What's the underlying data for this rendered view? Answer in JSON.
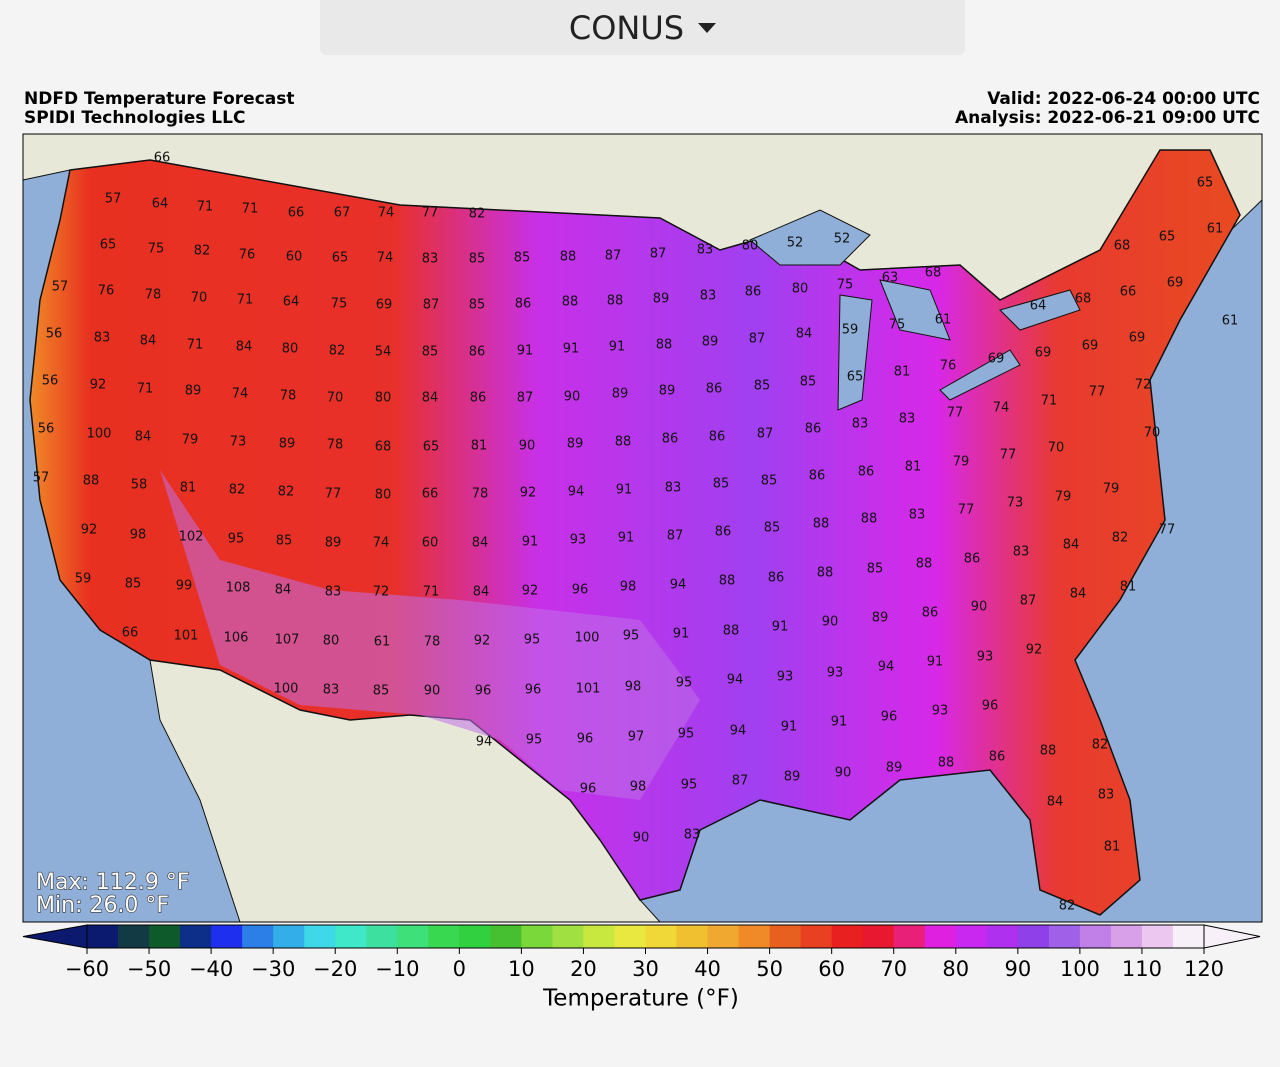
{
  "header": {
    "region": "CONUS",
    "title": "NDFD Temperature Forecast",
    "subtitle": "SPIDI Technologies LLC",
    "valid": "Valid: 2022-06-24 00:00 UTC",
    "analysis": "Analysis: 2022-06-21 09:00 UTC",
    "max": "Max: 112.9 °F",
    "min": "Min: 26.0 °F"
  },
  "map": {
    "label_rows": [
      [
        66
      ],
      [
        57,
        64,
        71,
        71,
        66,
        67,
        74,
        77,
        82
      ],
      [
        65,
        75,
        82,
        76,
        60,
        65,
        74,
        83,
        85,
        85,
        88,
        87,
        87,
        83,
        80,
        52,
        52,
        68,
        65,
        65,
        61
      ],
      [
        57,
        76,
        78,
        70,
        71,
        64,
        75,
        69,
        87,
        85,
        86,
        88,
        88,
        89,
        83,
        86,
        80,
        75,
        63,
        68,
        68,
        66,
        64,
        69
      ],
      [
        56,
        83,
        84,
        71,
        84,
        80,
        82,
        54,
        85,
        86,
        91,
        91,
        91,
        88,
        89,
        87,
        84,
        59,
        75,
        61,
        69,
        69,
        69,
        61
      ],
      [
        56,
        92,
        71,
        89,
        74,
        78,
        70,
        80,
        84,
        86,
        87,
        90,
        89,
        89,
        86,
        85,
        85,
        65,
        81,
        76,
        69,
        72,
        77,
        71,
        74,
        77
      ],
      [
        56,
        100,
        84,
        79,
        73,
        89,
        78,
        68,
        65,
        81,
        90,
        89,
        88,
        86,
        86,
        87,
        86,
        83,
        83,
        70,
        70,
        77,
        79,
        81,
        86
      ],
      [
        57,
        88,
        58,
        81,
        82,
        82,
        77,
        80,
        66,
        78,
        92,
        94,
        91,
        83,
        85,
        85,
        86,
        88,
        83,
        77,
        73,
        79,
        79
      ],
      [
        92,
        98,
        102,
        95,
        85,
        89,
        74,
        60,
        84,
        91,
        93,
        91,
        87,
        86,
        85,
        88,
        77,
        82,
        84,
        83,
        86,
        88,
        85
      ],
      [
        59,
        85,
        99,
        108,
        84,
        83,
        72,
        71,
        84,
        92,
        96,
        98,
        94,
        88,
        86,
        88,
        81,
        84,
        87,
        90,
        86,
        89,
        90
      ],
      [
        66,
        101,
        106,
        107,
        80,
        61,
        78,
        92,
        95,
        100,
        95,
        91,
        88,
        91,
        92,
        93,
        91,
        94,
        93,
        93,
        94
      ],
      [
        100,
        83,
        85,
        90,
        96,
        96,
        101,
        98,
        95,
        96,
        93,
        96,
        91,
        91,
        94
      ],
      [
        94,
        95,
        96,
        97,
        95,
        82,
        88,
        86,
        88,
        89,
        90,
        89,
        87
      ],
      [
        96,
        98,
        95,
        84,
        83
      ],
      [
        90,
        83,
        81
      ],
      [
        82
      ]
    ]
  },
  "colorbar": {
    "label": "Temperature (°F)",
    "lim": [
      -60,
      120
    ],
    "ticks": [
      {
        "value": -60,
        "label": "−60"
      },
      {
        "value": -50,
        "label": "−50"
      },
      {
        "value": -40,
        "label": "−40"
      },
      {
        "value": -30,
        "label": "−30"
      },
      {
        "value": -20,
        "label": "−20"
      },
      {
        "value": -10,
        "label": "−10"
      },
      0,
      10,
      20,
      30,
      40,
      50,
      60,
      70,
      80,
      90,
      100,
      110,
      120
    ],
    "colors": [
      "#0b1a6e",
      "#123a45",
      "#0e5a2a",
      "#0d2f8a",
      "#1f2ff0",
      "#2d7fe8",
      "#33aee8",
      "#3fd8e8",
      "#3fe8c8",
      "#3ee0a0",
      "#3ee07a",
      "#38d850",
      "#30d040",
      "#46c030",
      "#7ad83a",
      "#a0e040",
      "#c8e840",
      "#e8e840",
      "#f0d838",
      "#f0c030",
      "#f0a830",
      "#f08a28",
      "#e86020",
      "#e84020",
      "#e82020",
      "#e81830",
      "#e82078",
      "#e020e0",
      "#c828f0",
      "#b030f0",
      "#9040e8",
      "#a060e8",
      "#c080e8",
      "#d8a0e8",
      "#ecc8f0",
      "#f8f0f8"
    ]
  }
}
